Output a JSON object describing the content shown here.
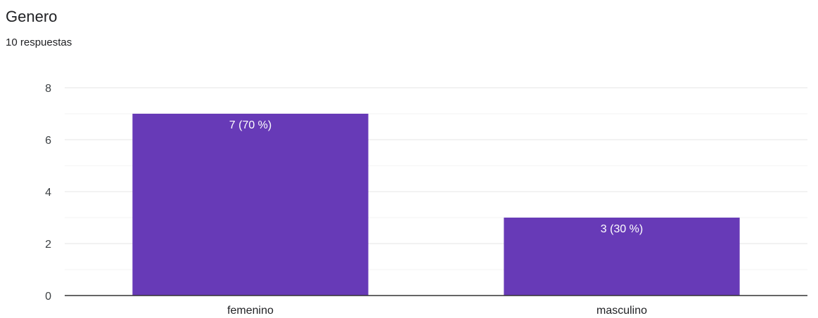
{
  "header": {
    "title": "Genero",
    "subtitle": "10 respuestas"
  },
  "colors": {
    "bar": "#673ab7",
    "grid_major": "#e6e6e6",
    "grid_minor": "#f3f3f3",
    "axis": "#333333"
  },
  "chart_data": {
    "type": "bar",
    "title": "Genero",
    "subtitle": "10 respuestas",
    "categories": [
      "femenino",
      "masculino"
    ],
    "values": [
      7,
      3
    ],
    "data_labels": [
      "7 (70 %)",
      "3 (30 %)"
    ],
    "xlabel": "",
    "ylabel": "",
    "ylim": [
      0,
      8
    ],
    "yticks": [
      0,
      2,
      4,
      6,
      8
    ],
    "grid": true,
    "legend": "none"
  }
}
